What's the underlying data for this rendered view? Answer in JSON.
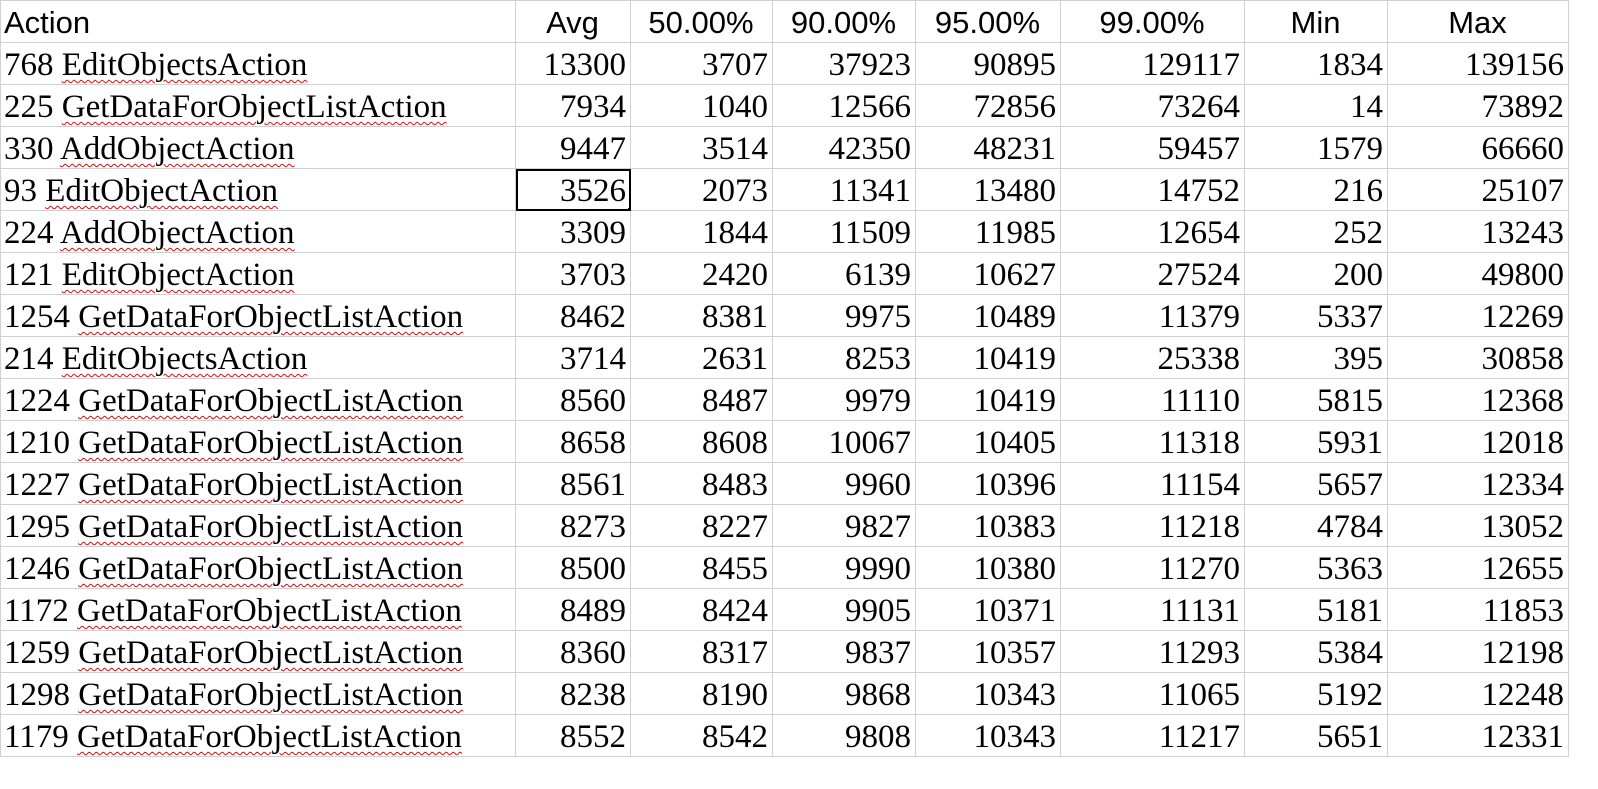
{
  "headers": [
    "Action",
    "Avg",
    "50.00%",
    "90.00%",
    "95.00%",
    "99.00%",
    "Min",
    "Max"
  ],
  "rows": [
    {
      "id": "768",
      "name": "EditObjectsAction",
      "avg": "13300",
      "p50": "3707",
      "p90": "37923",
      "p95": "90895",
      "p99": "129117",
      "min": "1834",
      "max": "139156"
    },
    {
      "id": "225",
      "name": "GetDataForObjectListAction",
      "avg": "7934",
      "p50": "1040",
      "p90": "12566",
      "p95": "72856",
      "p99": "73264",
      "min": "14",
      "max": "73892"
    },
    {
      "id": "330",
      "name": "AddObjectAction",
      "avg": "9447",
      "p50": "3514",
      "p90": "42350",
      "p95": "48231",
      "p99": "59457",
      "min": "1579",
      "max": "66660"
    },
    {
      "id": "93",
      "name": "EditObjectAction",
      "avg": "3526",
      "p50": "2073",
      "p90": "11341",
      "p95": "13480",
      "p99": "14752",
      "min": "216",
      "max": "25107"
    },
    {
      "id": "224",
      "name": "AddObjectAction",
      "avg": "3309",
      "p50": "1844",
      "p90": "11509",
      "p95": "11985",
      "p99": "12654",
      "min": "252",
      "max": "13243"
    },
    {
      "id": "121",
      "name": "EditObjectAction",
      "avg": "3703",
      "p50": "2420",
      "p90": "6139",
      "p95": "10627",
      "p99": "27524",
      "min": "200",
      "max": "49800"
    },
    {
      "id": "1254",
      "name": "GetDataForObjectListAction",
      "avg": "8462",
      "p50": "8381",
      "p90": "9975",
      "p95": "10489",
      "p99": "11379",
      "min": "5337",
      "max": "12269"
    },
    {
      "id": "214",
      "name": "EditObjectsAction",
      "avg": "3714",
      "p50": "2631",
      "p90": "8253",
      "p95": "10419",
      "p99": "25338",
      "min": "395",
      "max": "30858"
    },
    {
      "id": "1224",
      "name": "GetDataForObjectListAction",
      "avg": "8560",
      "p50": "8487",
      "p90": "9979",
      "p95": "10419",
      "p99": "11110",
      "min": "5815",
      "max": "12368"
    },
    {
      "id": "1210",
      "name": "GetDataForObjectListAction",
      "avg": "8658",
      "p50": "8608",
      "p90": "10067",
      "p95": "10405",
      "p99": "11318",
      "min": "5931",
      "max": "12018"
    },
    {
      "id": "1227",
      "name": "GetDataForObjectListAction",
      "avg": "8561",
      "p50": "8483",
      "p90": "9960",
      "p95": "10396",
      "p99": "11154",
      "min": "5657",
      "max": "12334"
    },
    {
      "id": "1295",
      "name": "GetDataForObjectListAction",
      "avg": "8273",
      "p50": "8227",
      "p90": "9827",
      "p95": "10383",
      "p99": "11218",
      "min": "4784",
      "max": "13052"
    },
    {
      "id": "1246",
      "name": "GetDataForObjectListAction",
      "avg": "8500",
      "p50": "8455",
      "p90": "9990",
      "p95": "10380",
      "p99": "11270",
      "min": "5363",
      "max": "12655"
    },
    {
      "id": "1172",
      "name": "GetDataForObjectListAction",
      "avg": "8489",
      "p50": "8424",
      "p90": "9905",
      "p95": "10371",
      "p99": "11131",
      "min": "5181",
      "max": "11853"
    },
    {
      "id": "1259",
      "name": "GetDataForObjectListAction",
      "avg": "8360",
      "p50": "8317",
      "p90": "9837",
      "p95": "10357",
      "p99": "11293",
      "min": "5384",
      "max": "12198"
    },
    {
      "id": "1298",
      "name": "GetDataForObjectListAction",
      "avg": "8238",
      "p50": "8190",
      "p90": "9868",
      "p95": "10343",
      "p99": "11065",
      "min": "5192",
      "max": "12248"
    },
    {
      "id": "1179",
      "name": "GetDataForObjectListAction",
      "avg": "8552",
      "p50": "8542",
      "p90": "9808",
      "p95": "10343",
      "p99": "11217",
      "min": "5651",
      "max": "12331"
    }
  ],
  "selected_cell": {
    "row": 3,
    "col": "avg"
  },
  "highlighted_cells": [
    {
      "row": 0,
      "col": "avg"
    },
    {
      "row": 0,
      "col": "p95"
    },
    {
      "row": 0,
      "col": "max"
    }
  ],
  "colors": {
    "highlight_underline": "#e02020",
    "spellcheck": "#d01010",
    "grid": "#d0d0d0"
  }
}
